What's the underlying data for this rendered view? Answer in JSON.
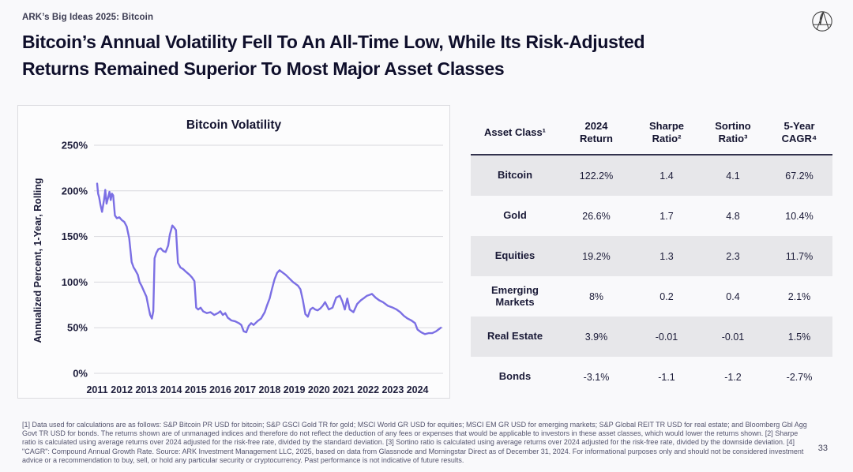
{
  "page": {
    "eyebrow": "ARK’s Big Ideas 2025: Bitcoin",
    "title_line1": "Bitcoin’s Annual Volatility Fell To An All-Time Low, While Its Risk-Adjusted",
    "title_line2": "Returns Remained Superior To Most Major Asset Classes",
    "page_number": "33"
  },
  "chart_data": {
    "type": "line",
    "title": "Bitcoin Volatility",
    "ylabel": "Annualized Percent, 1-Year, Rolling",
    "xlabel": "",
    "series_name": "Bitcoin annualized volatility, 1-year rolling",
    "line_color": "#7b6fe4",
    "grid": "horizontal",
    "legend_position": "none",
    "ylim": [
      0,
      250
    ],
    "xlim": [
      2011,
      2025
    ],
    "yticks": [
      0,
      50,
      100,
      150,
      200,
      250
    ],
    "ytick_suffix": "%",
    "xticks": [
      2011,
      2012,
      2013,
      2014,
      2015,
      2016,
      2017,
      2018,
      2019,
      2020,
      2021,
      2022,
      2023,
      2024
    ],
    "x": [
      2011.0,
      2011.04,
      2011.08,
      2011.13,
      2011.2,
      2011.28,
      2011.33,
      2011.38,
      2011.45,
      2011.5,
      2011.55,
      2011.6,
      2011.65,
      2011.72,
      2011.8,
      2011.9,
      2012.0,
      2012.1,
      2012.2,
      2012.3,
      2012.4,
      2012.48,
      2012.55,
      2012.65,
      2012.72,
      2012.8,
      2012.9,
      2013.0,
      2013.08,
      2013.15,
      2013.22,
      2013.28,
      2013.33,
      2013.4,
      2013.48,
      2013.58,
      2013.68,
      2013.78,
      2013.88,
      2013.95,
      2014.05,
      2014.12,
      2014.2,
      2014.28,
      2014.38,
      2014.5,
      2014.62,
      2014.75,
      2014.85,
      2014.95,
      2015.02,
      2015.1,
      2015.2,
      2015.3,
      2015.45,
      2015.6,
      2015.75,
      2015.9,
      2016.0,
      2016.1,
      2016.2,
      2016.3,
      2016.45,
      2016.6,
      2016.75,
      2016.85,
      2016.95,
      2017.05,
      2017.15,
      2017.25,
      2017.35,
      2017.5,
      2017.65,
      2017.8,
      2017.9,
      2018.0,
      2018.1,
      2018.2,
      2018.3,
      2018.4,
      2018.5,
      2018.65,
      2018.8,
      2018.95,
      2019.05,
      2019.15,
      2019.25,
      2019.35,
      2019.45,
      2019.55,
      2019.65,
      2019.75,
      2019.85,
      2019.95,
      2020.05,
      2020.15,
      2020.25,
      2020.4,
      2020.55,
      2020.7,
      2020.85,
      2020.95,
      2021.05,
      2021.15,
      2021.25,
      2021.4,
      2021.55,
      2021.7,
      2021.85,
      2021.95,
      2022.05,
      2022.15,
      2022.3,
      2022.45,
      2022.6,
      2022.8,
      2023.0,
      2023.15,
      2023.3,
      2023.45,
      2023.6,
      2023.75,
      2023.9,
      2024.0,
      2024.15,
      2024.3,
      2024.45,
      2024.6,
      2024.75,
      2024.85,
      2024.95
    ],
    "values": [
      208,
      197,
      193,
      185,
      177,
      190,
      201,
      186,
      193,
      199,
      190,
      197,
      195,
      173,
      170,
      171,
      168,
      166,
      161,
      148,
      122,
      116,
      113,
      108,
      100,
      96,
      90,
      84,
      73,
      64,
      60,
      68,
      126,
      132,
      136,
      137,
      134,
      133,
      140,
      152,
      162,
      160,
      157,
      121,
      116,
      114,
      111,
      108,
      105,
      101,
      72,
      70,
      72,
      68,
      66,
      67,
      64,
      66,
      68,
      64,
      66,
      61,
      58,
      57,
      55,
      53,
      46,
      45,
      52,
      55,
      53,
      57,
      60,
      67,
      75,
      82,
      93,
      103,
      110,
      113,
      111,
      108,
      104,
      100,
      98,
      96,
      92,
      80,
      65,
      62,
      70,
      72,
      70,
      69,
      71,
      74,
      78,
      70,
      72,
      83,
      85,
      79,
      70,
      82,
      70,
      67,
      76,
      80,
      83,
      85,
      86,
      87,
      83,
      80,
      78,
      74,
      72,
      70,
      67,
      63,
      60,
      58,
      55,
      48,
      45,
      43,
      44,
      44,
      46,
      48,
      50
    ]
  },
  "table": {
    "columns": [
      {
        "label": "Asset Class¹"
      },
      {
        "label": "2024 Return"
      },
      {
        "label": "Sharpe Ratio²"
      },
      {
        "label": "Sortino Ratio³"
      },
      {
        "label": "5-Year CAGR⁴"
      }
    ],
    "rows": [
      {
        "asset": "Bitcoin",
        "return": "122.2%",
        "sharpe": "1.4",
        "sortino": "4.1",
        "cagr": "67.2%"
      },
      {
        "asset": "Gold",
        "return": "26.6%",
        "sharpe": "1.7",
        "sortino": "4.8",
        "cagr": "10.4%"
      },
      {
        "asset": "Equities",
        "return": "19.2%",
        "sharpe": "1.3",
        "sortino": "2.3",
        "cagr": "11.7%"
      },
      {
        "asset": "Emerging Markets",
        "return": "8%",
        "sharpe": "0.2",
        "sortino": "0.4",
        "cagr": "2.1%"
      },
      {
        "asset": "Real Estate",
        "return": "3.9%",
        "sharpe": "-0.01",
        "sortino": "-0.01",
        "cagr": "1.5%"
      },
      {
        "asset": "Bonds",
        "return": "-3.1%",
        "sharpe": "-1.1",
        "sortino": "-1.2",
        "cagr": "-2.7%"
      }
    ]
  },
  "footnote": "[1] Data used for calculations are as follows: S&P Bitcoin PR USD for bitcoin; S&P GSCI Gold TR for gold; MSCI World GR USD for equities; MSCI EM GR USD for emerging markets; S&P Global REIT TR USD for real estate; and Bloomberg Gbl Agg Govt TR USD for bonds. The returns shown are of unmanaged indices and therefore do not reflect the deduction of any fees or expenses that would be applicable to investors in these asset classes, which would lower the returns shown. [2] Sharpe ratio is calculated using average returns over 2024 adjusted for the risk-free rate, divided by the standard deviation. [3] Sortino ratio is calculated using average returns over 2024 adjusted for the risk-free rate, divided by the downside deviation. [4] \"CAGR\": Compound Annual Growth Rate. Source: ARK Investment Management LLC, 2025, based on data from Glassnode and Morningstar Direct as of December 31, 2024. For informational purposes only and should not be considered investment advice or a recommendation to buy, sell, or hold any particular security or cryptocurrency. Past performance is not indicative of future results."
}
